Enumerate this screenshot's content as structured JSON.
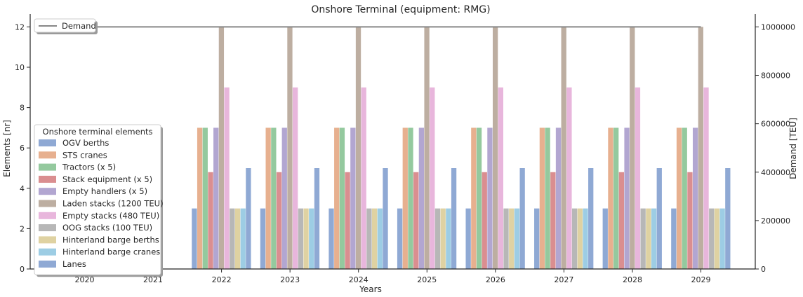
{
  "chart_data": {
    "type": "bar",
    "title": "Onshore Terminal (equipment: RMG)",
    "xlabel": "Years",
    "ylabel": "Elements [nr]",
    "y2label": "Demand [TEU]",
    "ylim": [
      0,
      12.5
    ],
    "y2lim": [
      0,
      1041667
    ],
    "yticks": [
      0,
      2,
      4,
      6,
      8,
      10,
      12
    ],
    "y2ticks": [
      0,
      200000,
      400000,
      600000,
      800000,
      1000000
    ],
    "categories": [
      "2020",
      "2021",
      "2022",
      "2023",
      "2024",
      "2025",
      "2026",
      "2027",
      "2028",
      "2029"
    ],
    "legend_title": "Onshore terminal elements",
    "legend_position": "lower-left",
    "series": [
      {
        "name": "OGV berths",
        "color": "#8fa9d4",
        "values": [
          0,
          0,
          3,
          3,
          3,
          3,
          3,
          3,
          3,
          3
        ]
      },
      {
        "name": "STS cranes",
        "color": "#e7b08f",
        "values": [
          0,
          0,
          7,
          7,
          7,
          7,
          7,
          7,
          7,
          7
        ]
      },
      {
        "name": "Tractors (x 5)",
        "color": "#94c99e",
        "values": [
          0,
          0,
          7,
          7,
          7,
          7,
          7,
          7,
          7,
          7
        ]
      },
      {
        "name": "Stack equipment (x 5)",
        "color": "#da8e90",
        "values": [
          0,
          0,
          4.8,
          4.8,
          4.8,
          4.8,
          4.8,
          4.8,
          4.8,
          4.8
        ]
      },
      {
        "name": "Empty handlers (x 5)",
        "color": "#b2a6d1",
        "values": [
          0,
          0,
          7,
          7,
          7,
          7,
          7,
          7,
          7,
          7
        ]
      },
      {
        "name": "Laden stacks (1200 TEU)",
        "color": "#bdaea1",
        "values": [
          0,
          0,
          12,
          12,
          12,
          12,
          12,
          12,
          12,
          12
        ]
      },
      {
        "name": "Empty stacks (480 TEU)",
        "color": "#e8b6dc",
        "values": [
          0,
          0,
          9,
          9,
          9,
          9,
          9,
          9,
          9,
          9
        ]
      },
      {
        "name": "OOG stacks (100 TEU)",
        "color": "#b7b7b7",
        "values": [
          0,
          0,
          3,
          3,
          3,
          3,
          3,
          3,
          3,
          3
        ]
      },
      {
        "name": "Hinterland barge berths",
        "color": "#dfd2a2",
        "values": [
          0,
          0,
          3,
          3,
          3,
          3,
          3,
          3,
          3,
          3
        ]
      },
      {
        "name": "Hinterland barge cranes",
        "color": "#9dcde4",
        "values": [
          0,
          0,
          3,
          3,
          3,
          3,
          3,
          3,
          3,
          3
        ]
      },
      {
        "name": "Lanes",
        "color": "#8fa9d4",
        "values": [
          0,
          0,
          5,
          5,
          5,
          5,
          5,
          5,
          5,
          5
        ]
      }
    ],
    "demand": {
      "name": "Demand",
      "color": "#888888",
      "values": [
        1000000,
        1000000,
        1000000,
        1000000,
        1000000,
        1000000,
        1000000,
        1000000,
        1000000,
        1000000
      ]
    }
  }
}
